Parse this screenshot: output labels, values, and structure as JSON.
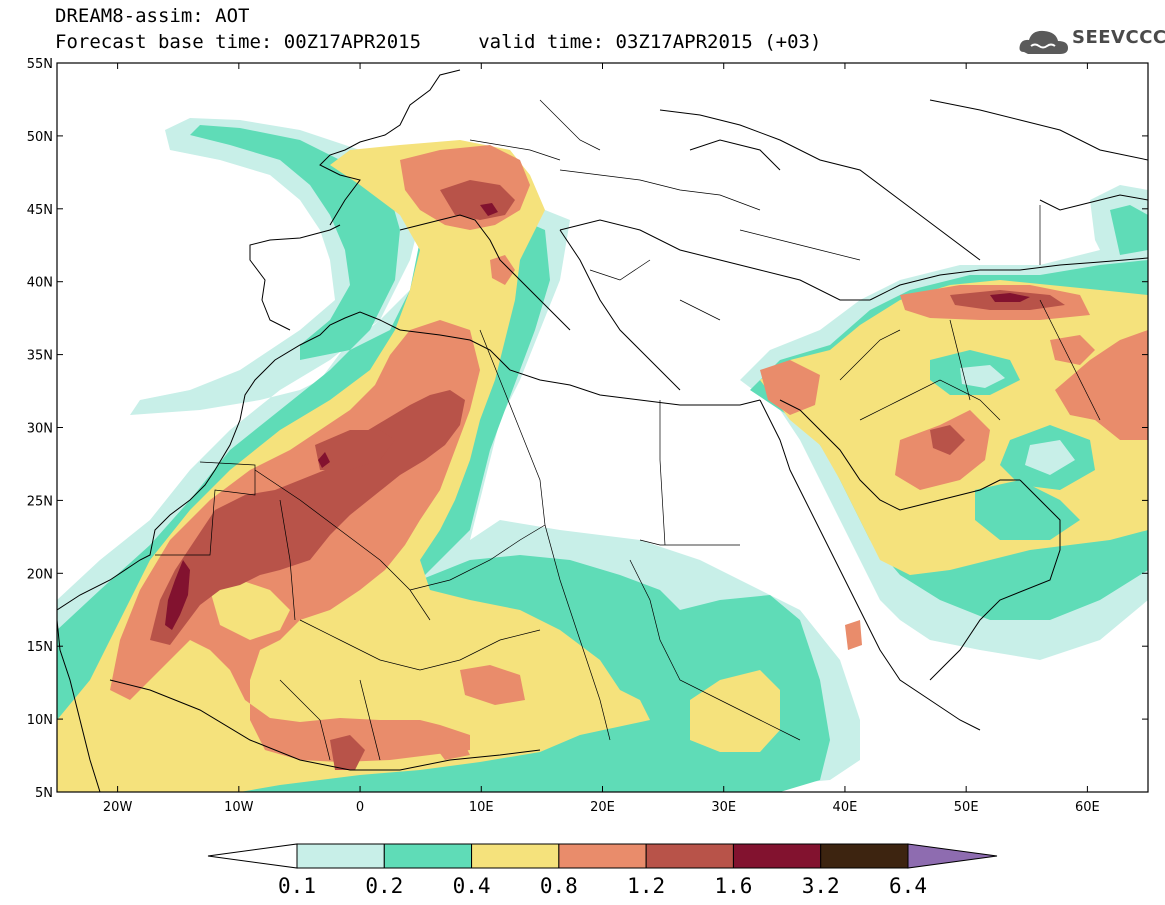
{
  "header": {
    "title": "DREAM8-assim: AOT",
    "subtitle": "Forecast base time: 00Z17APR2015     valid time: 03Z17APR2015 (+03)"
  },
  "logo": {
    "text": "SEEVCCC",
    "icon": "cloud-icon"
  },
  "map": {
    "projection": "lat-lon",
    "lon_range": [
      -25,
      65
    ],
    "lat_range": [
      5,
      55
    ],
    "lat_ticks": [
      "5N",
      "10N",
      "15N",
      "20N",
      "25N",
      "30N",
      "35N",
      "40N",
      "45N",
      "50N",
      "55N"
    ],
    "lon_ticks": [
      "20W",
      "10W",
      "0",
      "10E",
      "20E",
      "30E",
      "40E",
      "50E",
      "60E"
    ]
  },
  "colorbar": {
    "labels": [
      "0.1",
      "0.2",
      "0.4",
      "0.8",
      "1.2",
      "1.6",
      "3.2",
      "6.4"
    ],
    "colors": [
      "#ffffff",
      "#c8efe8",
      "#5fdcb7",
      "#f5e27c",
      "#e98c6b",
      "#b85349",
      "#82122f",
      "#3d2410",
      "#8e6cb0"
    ]
  }
}
